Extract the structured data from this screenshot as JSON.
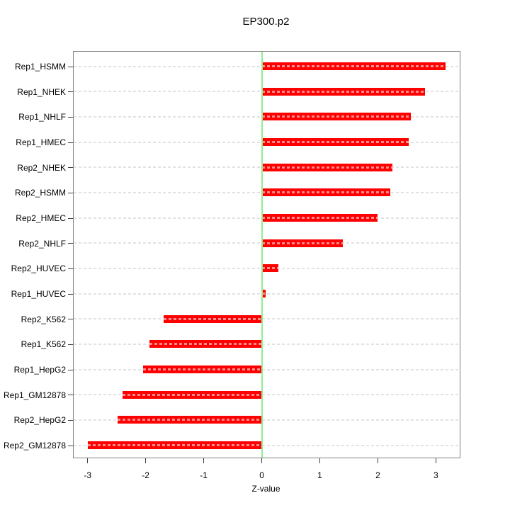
{
  "title": "EP300.p2",
  "chart_data": {
    "type": "bar",
    "orientation": "horizontal",
    "title": "EP300.p2",
    "xlabel": "Z-value",
    "ylabel": "",
    "categories": [
      "Rep1_HSMM",
      "Rep1_NHEK",
      "Rep1_NHLF",
      "Rep1_HMEC",
      "Rep2_NHEK",
      "Rep2_HSMM",
      "Rep2_HMEC",
      "Rep2_NHLF",
      "Rep2_HUVEC",
      "Rep1_HUVEC",
      "Rep2_K562",
      "Rep1_K562",
      "Rep1_HepG2",
      "Rep1_GM12878",
      "Rep2_HepG2",
      "Rep2_GM12878"
    ],
    "values": [
      3.16,
      2.81,
      2.57,
      2.53,
      2.25,
      2.22,
      1.99,
      1.4,
      0.29,
      0.07,
      -1.69,
      -1.94,
      -2.05,
      -2.4,
      -2.48,
      -2.99
    ],
    "x_ticks": [
      -3,
      -2,
      -1,
      0,
      1,
      2,
      3
    ],
    "xlim": [
      -3.24,
      3.41
    ],
    "zero_line_x": 0,
    "grid": "dashed horizontal line per category, full plot width",
    "legend": "none",
    "colors": {
      "bar": "#ff0000",
      "bar_dash_overlay": "#ff9999",
      "zero_line": "#90ee90",
      "gridline": "#e2e2e2",
      "box_border": "#808080",
      "tick": "#404040",
      "text": "#000000",
      "background": "#ffffff"
    }
  }
}
